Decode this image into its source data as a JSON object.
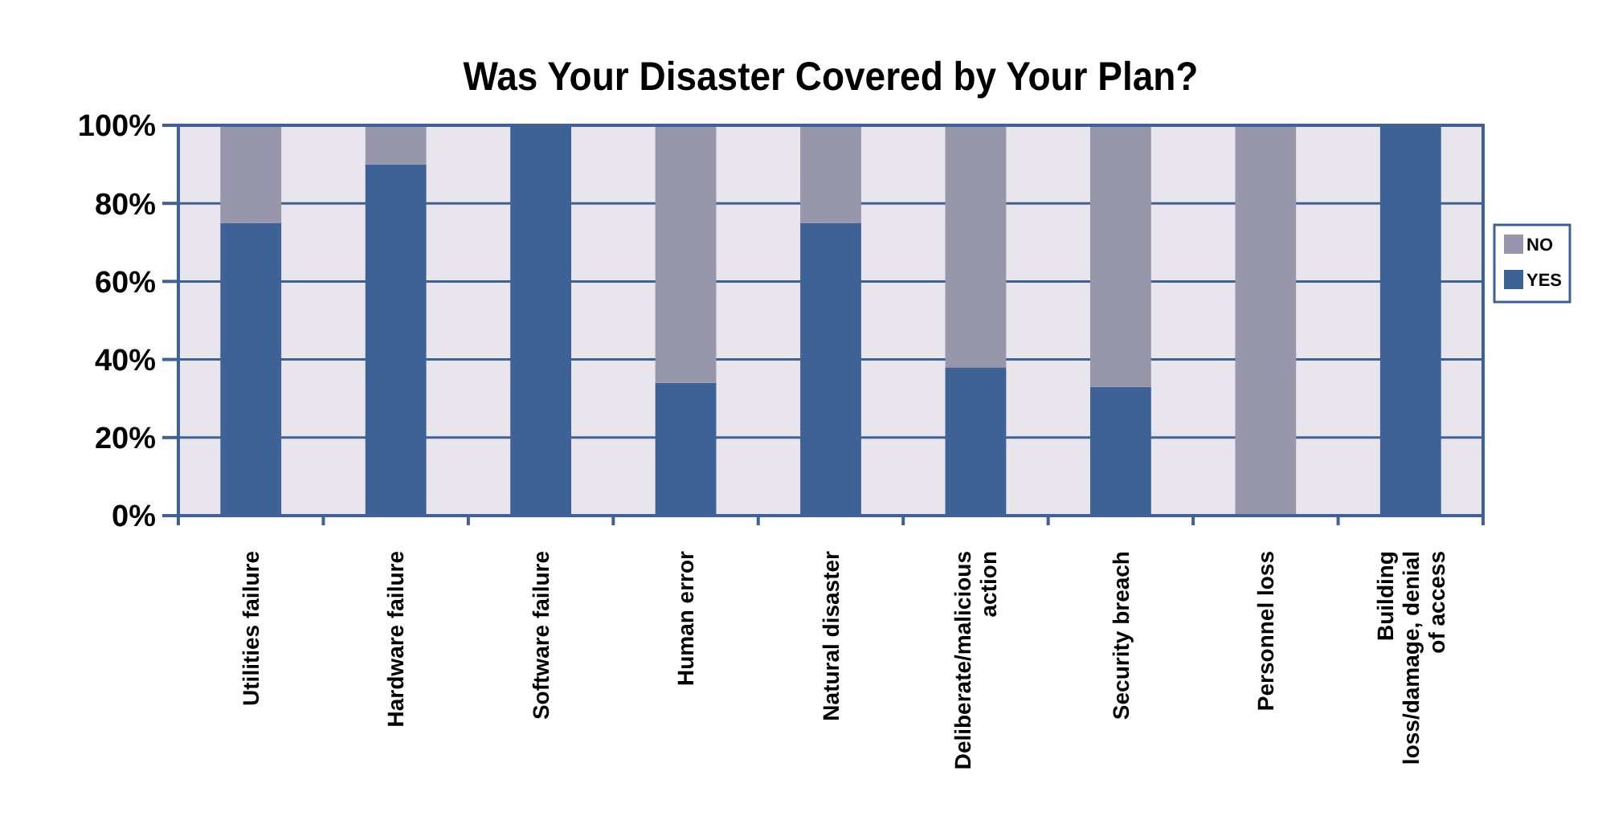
{
  "chart_data": {
    "type": "bar",
    "title": "Was Your Disaster Covered by Your Plan?",
    "stacked": true,
    "categories": [
      "Utilities failure",
      "Hardware failure",
      "Software failure",
      "Human error",
      "Natural disaster",
      "Deliberate/malicious action",
      "Security breach",
      "Personnel loss",
      "Building loss/damage, denial of access"
    ],
    "series": [
      {
        "name": "YES",
        "color": "#3e6196",
        "values": [
          75,
          90,
          100,
          34,
          75,
          38,
          33,
          0,
          100
        ]
      },
      {
        "name": "NO",
        "color": "#9896ab",
        "values": [
          25,
          10,
          0,
          66,
          25,
          62,
          67,
          100,
          0
        ]
      }
    ],
    "ylim": [
      0,
      100
    ],
    "yticks": [
      {
        "value": 0,
        "label": "0%"
      },
      {
        "value": 20,
        "label": "20%"
      },
      {
        "value": 40,
        "label": "40%"
      },
      {
        "value": 60,
        "label": "60%"
      },
      {
        "value": 80,
        "label": "80%"
      },
      {
        "value": 100,
        "label": "100%"
      }
    ],
    "grid": "y",
    "legend": "right"
  }
}
